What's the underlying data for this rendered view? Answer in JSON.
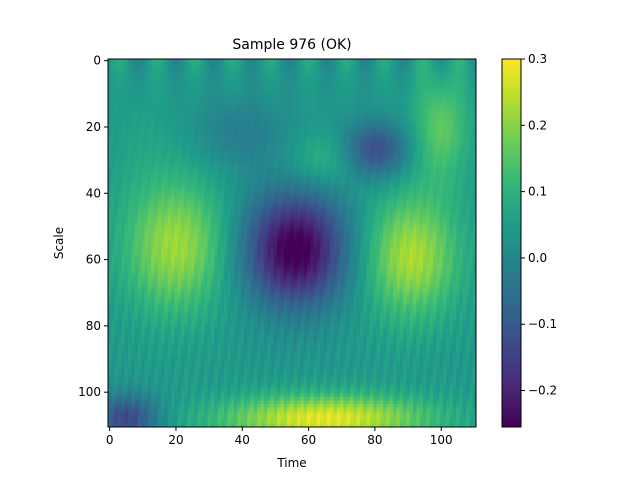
{
  "chart_data": {
    "type": "heatmap",
    "title": "Sample 976 (OK)",
    "xlabel": "Time",
    "ylabel": "Scale",
    "xlim": [
      0,
      111
    ],
    "ylim": [
      111,
      0
    ],
    "x_ticks": [
      0,
      20,
      40,
      60,
      80,
      100
    ],
    "y_ticks": [
      0,
      20,
      40,
      60,
      80,
      100
    ],
    "colormap": "viridis",
    "colorbar": {
      "vmin": -0.255,
      "vmax": 0.3,
      "ticks": [
        0.3,
        0.2,
        0.1,
        0.0,
        -0.1,
        -0.2
      ],
      "tick_labels": [
        "0.3",
        "0.2",
        "0.1",
        "0.0",
        "−0.1",
        "−0.2"
      ]
    },
    "grid": false,
    "features": [
      {
        "label": "positive lobe",
        "time": 20,
        "scale": 56,
        "value": 0.2
      },
      {
        "label": "negative lobe",
        "time": 56,
        "scale": 56,
        "value": -0.25
      },
      {
        "label": "positive lobe",
        "time": 91,
        "scale": 59,
        "value": 0.22
      },
      {
        "label": "positive band",
        "time": 65,
        "scale": 107,
        "value": 0.28
      },
      {
        "label": "negative patch",
        "time": 5,
        "scale": 108,
        "value": -0.15
      },
      {
        "label": "negative patch",
        "time": 80,
        "scale": 27,
        "value": -0.15
      },
      {
        "label": "weak positive",
        "time": 100,
        "scale": 20,
        "value": 0.15
      },
      {
        "label": "weak positive",
        "time": 65,
        "scale": 30,
        "value": 0.08
      }
    ]
  }
}
